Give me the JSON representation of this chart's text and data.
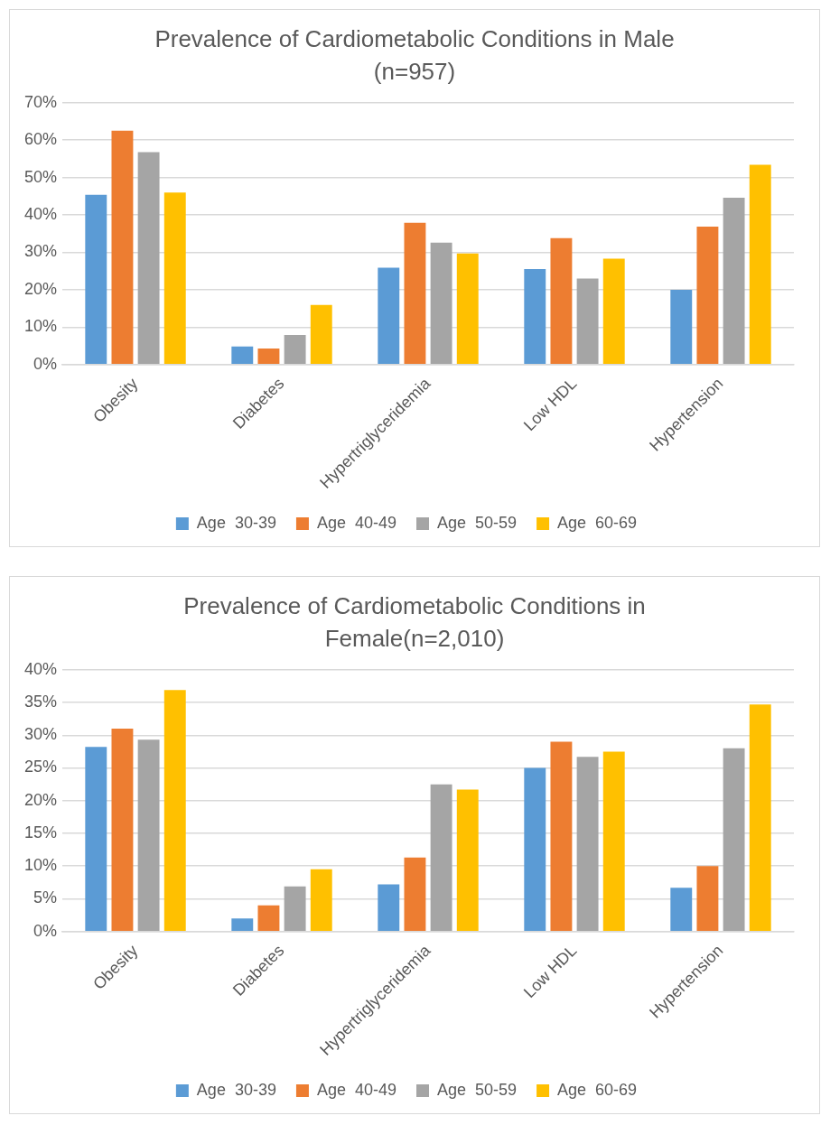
{
  "chart_data": [
    {
      "type": "bar",
      "title": "Prevalence of Cardiometabolic Conditions in Male (n=957)",
      "categories": [
        "Obesity",
        "Diabetes",
        "Hypertriglyceridemia",
        "Low HDL",
        "Hypertension"
      ],
      "series": [
        {
          "name": "Age  30-39",
          "color": "#5b9bd5",
          "values": [
            45.4,
            4.8,
            25.9,
            25.5,
            20.0
          ]
        },
        {
          "name": "Age  40-49",
          "color": "#ed7d31",
          "values": [
            62.5,
            4.3,
            37.9,
            33.8,
            36.9
          ]
        },
        {
          "name": "Age  50-59",
          "color": "#a5a5a5",
          "values": [
            56.8,
            7.9,
            32.6,
            23.0,
            44.6
          ]
        },
        {
          "name": "Age  60-69",
          "color": "#ffc000",
          "values": [
            46.0,
            15.9,
            29.7,
            28.3,
            53.4
          ]
        }
      ],
      "ylim": [
        0,
        70
      ],
      "yticks": [
        {
          "value": 0,
          "label": "0%"
        },
        {
          "value": 10,
          "label": "10%"
        },
        {
          "value": 20,
          "label": "20%"
        },
        {
          "value": 30,
          "label": "30%"
        },
        {
          "value": 40,
          "label": "40%"
        },
        {
          "value": 50,
          "label": "50%"
        },
        {
          "value": 60,
          "label": "60%"
        },
        {
          "value": 70,
          "label": "70%"
        }
      ],
      "grid": "y",
      "legend": "bottom"
    },
    {
      "type": "bar",
      "title": "Prevalence of Cardiometabolic Conditions in Female(n=2,010)",
      "categories": [
        "Obesity",
        "Diabetes",
        "Hypertriglyceridemia",
        "Low HDL",
        "Hypertension"
      ],
      "series": [
        {
          "name": "Age  30-39",
          "color": "#5b9bd5",
          "values": [
            28.2,
            2.0,
            7.2,
            25.0,
            6.7
          ]
        },
        {
          "name": "Age  40-49",
          "color": "#ed7d31",
          "values": [
            31.0,
            4.0,
            11.3,
            29.0,
            10.0
          ]
        },
        {
          "name": "Age  50-59",
          "color": "#a5a5a5",
          "values": [
            29.3,
            6.9,
            22.5,
            26.7,
            28.0
          ]
        },
        {
          "name": "Age  60-69",
          "color": "#ffc000",
          "values": [
            36.9,
            9.5,
            21.7,
            27.5,
            34.7
          ]
        }
      ],
      "ylim": [
        0,
        40
      ],
      "yticks": [
        {
          "value": 0,
          "label": "0%"
        },
        {
          "value": 5,
          "label": "5%"
        },
        {
          "value": 10,
          "label": "10%"
        },
        {
          "value": 15,
          "label": "15%"
        },
        {
          "value": 20,
          "label": "20%"
        },
        {
          "value": 25,
          "label": "25%"
        },
        {
          "value": 30,
          "label": "30%"
        },
        {
          "value": 35,
          "label": "35%"
        },
        {
          "value": 40,
          "label": "40%"
        }
      ],
      "grid": "y",
      "legend": "bottom"
    }
  ]
}
